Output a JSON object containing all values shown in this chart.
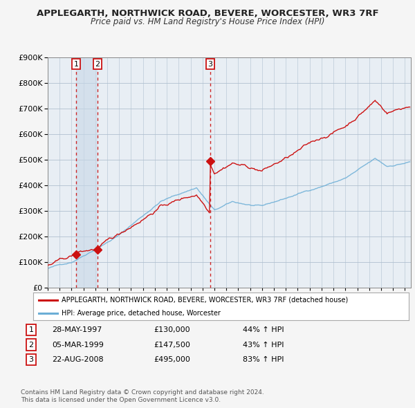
{
  "title": "APPLEGARTH, NORTHWICK ROAD, BEVERE, WORCESTER, WR3 7RF",
  "subtitle": "Price paid vs. HM Land Registry's House Price Index (HPI)",
  "legend_line1": "APPLEGARTH, NORTHWICK ROAD, BEVERE, WORCESTER, WR3 7RF (detached house)",
  "legend_line2": "HPI: Average price, detached house, Worcester",
  "transactions": [
    {
      "num": 1,
      "date": "28-MAY-1997",
      "price": 130000,
      "pct": "44%",
      "dir": "↑",
      "year": 1997.38
    },
    {
      "num": 2,
      "date": "05-MAR-1999",
      "price": 147500,
      "pct": "43%",
      "dir": "↑",
      "year": 1999.17
    },
    {
      "num": 3,
      "date": "22-AUG-2008",
      "price": 495000,
      "pct": "83%",
      "dir": "↑",
      "year": 2008.64
    }
  ],
  "footnote1": "Contains HM Land Registry data © Crown copyright and database right 2024.",
  "footnote2": "This data is licensed under the Open Government Licence v3.0.",
  "hpi_color": "#6baed6",
  "price_color": "#cc1111",
  "vline_color": "#cc1111",
  "background_color": "#f5f5f5",
  "plot_bg": "#e8eef4",
  "ylim": [
    0,
    900000
  ],
  "yticks": [
    0,
    100000,
    200000,
    300000,
    400000,
    500000,
    600000,
    700000,
    800000,
    900000
  ],
  "xlim_start": 1995.0,
  "xlim_end": 2025.5
}
